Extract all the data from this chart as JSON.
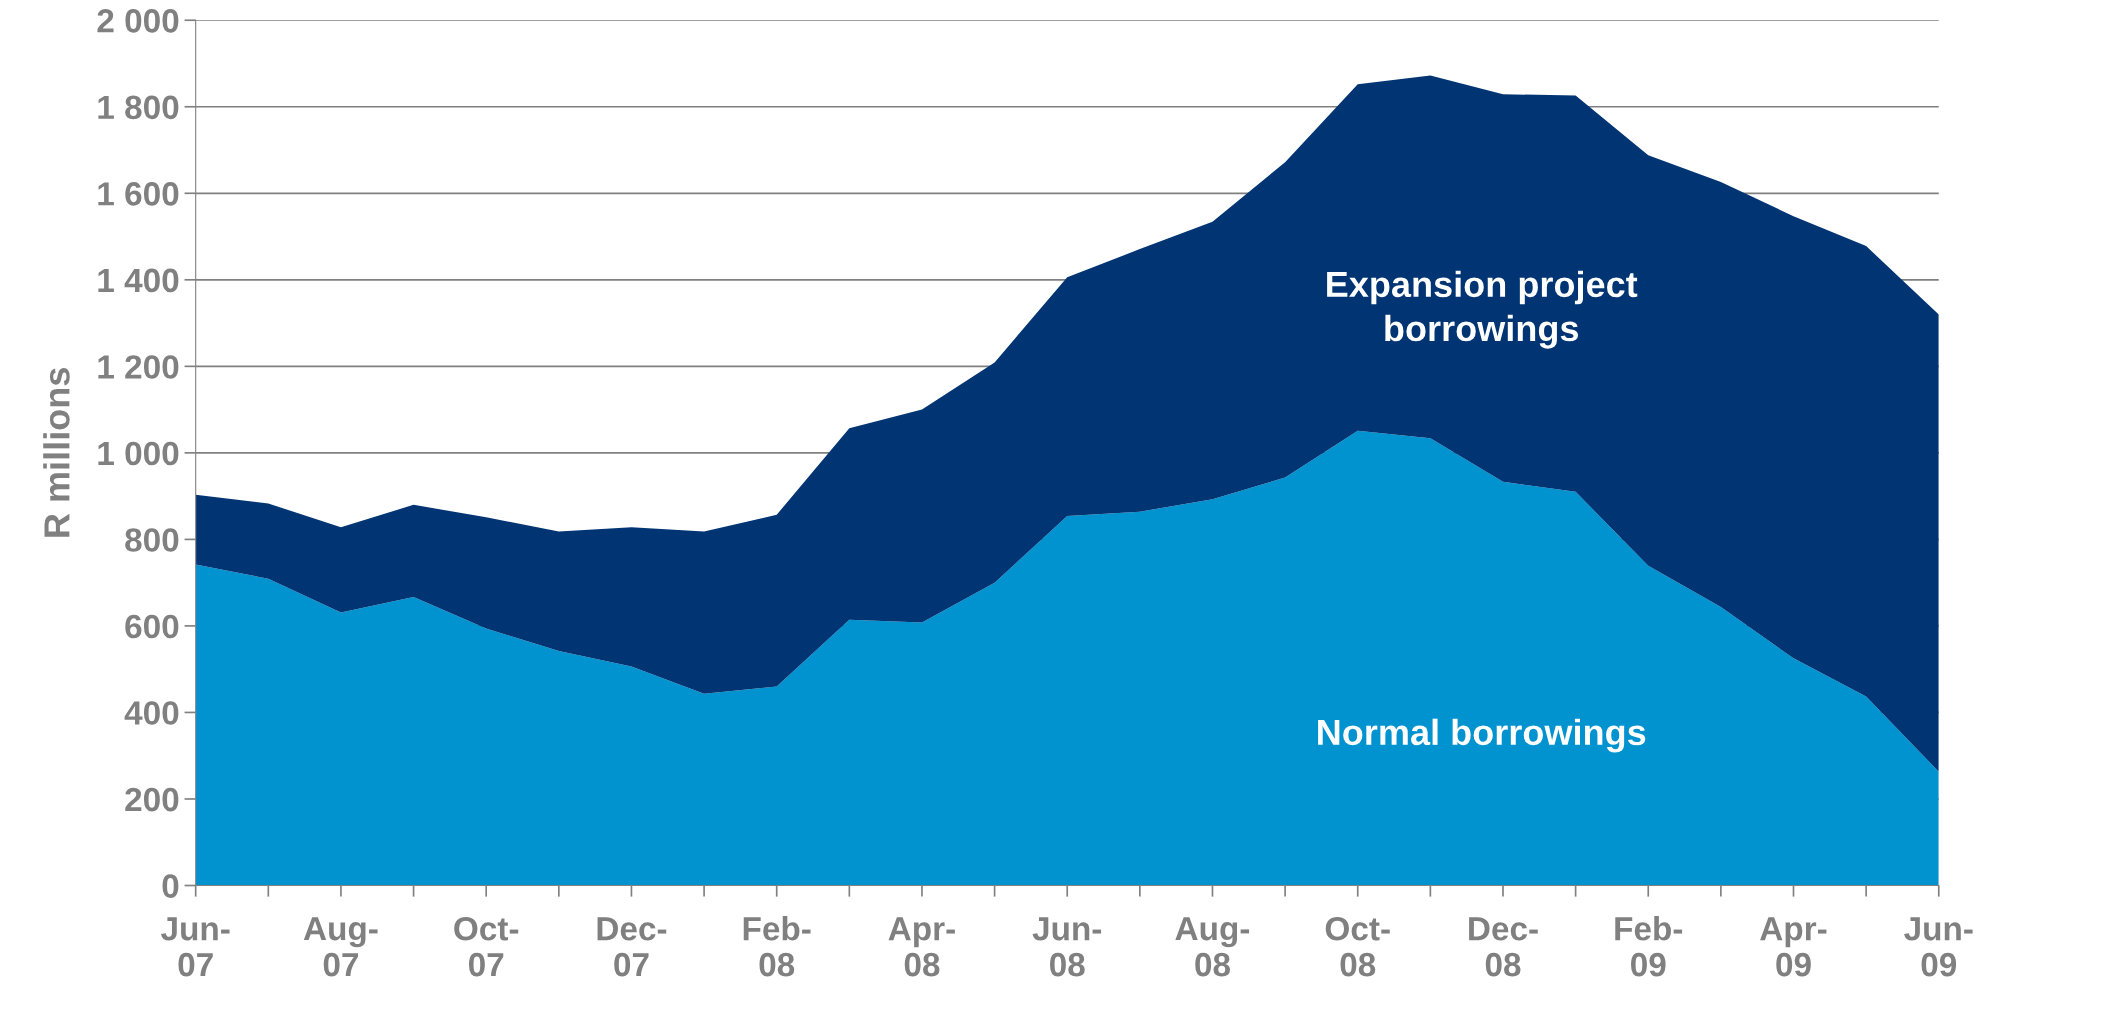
{
  "chart_data": {
    "type": "area",
    "stacked": true,
    "ylabel": "R millions",
    "categories": [
      "Jun-\n07",
      null,
      "Aug-\n07",
      null,
      "Oct-\n07",
      null,
      "Dec-\n07",
      null,
      "Feb-\n08",
      null,
      "Apr-\n08",
      null,
      "Jun-\n08",
      null,
      "Aug-\n08",
      null,
      "Oct-\n08",
      null,
      "Dec-\n08",
      null,
      "Feb-\n09",
      null,
      "Apr-\n09",
      null,
      "Jun-\n09"
    ],
    "series": [
      {
        "name": "Normal borrowings",
        "color": "#0093d0",
        "values": [
          742,
          709,
          631,
          667,
          594,
          542,
          506,
          443,
          460,
          614,
          608,
          700,
          854,
          864,
          893,
          943,
          1051,
          1034,
          933,
          910,
          739,
          644,
          525,
          437,
          263
        ]
      },
      {
        "name": "Expansion project\nborrowings",
        "color": "#003473",
        "values": [
          161,
          174,
          197,
          213,
          257,
          276,
          322,
          375,
          397,
          443,
          492,
          509,
          552,
          607,
          641,
          729,
          801,
          838,
          896,
          916,
          949,
          982,
          1022,
          1041,
          1057
        ]
      }
    ],
    "ylim": [
      0,
      2000
    ],
    "yticks": [
      0,
      200,
      400,
      600,
      800,
      {
        "value": 1000,
        "label": "1 000"
      },
      {
        "value": 1200,
        "label": "1 200"
      },
      {
        "value": 1400,
        "label": "1 400"
      },
      {
        "value": 1600,
        "label": "1 600"
      },
      {
        "value": 1800,
        "label": "1 800"
      },
      {
        "value": 2000,
        "label": "2 000"
      }
    ],
    "grid": "y",
    "legend": false
  }
}
